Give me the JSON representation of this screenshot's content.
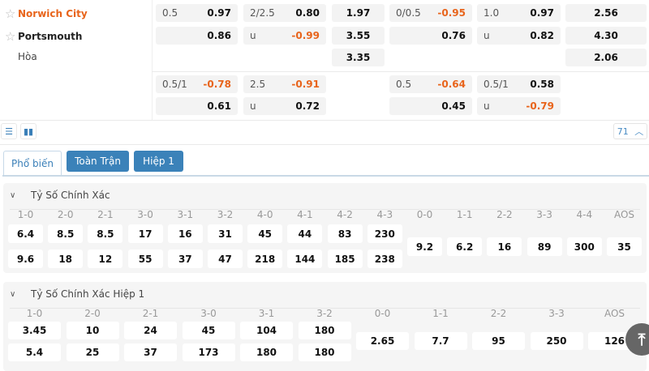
{
  "match": {
    "teams": [
      {
        "name": "Norwich City",
        "color": "#e8641b",
        "starred": false
      },
      {
        "name": "Portsmouth",
        "color": "#111111",
        "starred": false
      },
      {
        "name": "Hòa"
      }
    ]
  },
  "odds_rows": [
    [
      {
        "l": "0.5",
        "v": "0.97"
      },
      {
        "l": "2/2.5",
        "v": "0.80"
      },
      {
        "v": "1.97"
      },
      {
        "l": "0/0.5",
        "v": "-0.95"
      },
      {
        "l": "1.0",
        "v": "0.97"
      },
      {
        "v": "2.56"
      }
    ],
    [
      {
        "l": "",
        "v": "0.86"
      },
      {
        "l": "u",
        "v": "-0.99"
      },
      {
        "v": "3.55"
      },
      {
        "l": "",
        "v": "0.76"
      },
      {
        "l": "u",
        "v": "0.82"
      },
      {
        "v": "4.30"
      }
    ],
    [
      null,
      null,
      {
        "v": "3.35"
      },
      null,
      null,
      {
        "v": "2.06"
      }
    ],
    [
      {
        "l": "0.5/1",
        "v": "-0.78"
      },
      {
        "l": "2.5",
        "v": "-0.91"
      },
      null,
      {
        "l": "0.5",
        "v": "-0.64"
      },
      {
        "l": "0.5/1",
        "v": "0.58"
      },
      null
    ],
    [
      {
        "l": "",
        "v": "0.61"
      },
      {
        "l": "u",
        "v": "0.72"
      },
      null,
      {
        "l": "",
        "v": "0.45"
      },
      {
        "l": "u",
        "v": "-0.79"
      },
      null
    ]
  ],
  "toolbar": {
    "list_icon": "list-icon",
    "chart_icon": "bar-chart-icon",
    "count": "71",
    "collapse_icon": "chevron-up-icon"
  },
  "tabs": [
    {
      "label": "Phổ biến",
      "active": true
    },
    {
      "label": "Toàn Trận",
      "active": false
    },
    {
      "label": "Hiệp 1",
      "active": false
    }
  ],
  "colors": {
    "accent": "#3b82b9",
    "negative": "#e8641b"
  },
  "sections": [
    {
      "title": "Tỷ Số Chính Xác",
      "labels": [
        "1-0",
        "2-0",
        "2-1",
        "3-0",
        "3-1",
        "3-2",
        "4-0",
        "4-1",
        "4-2",
        "4-3",
        "0-0",
        "1-1",
        "2-2",
        "3-3",
        "4-4",
        "AOS"
      ],
      "home": [
        "6.4",
        "8.5",
        "8.5",
        "17",
        "16",
        "31",
        "45",
        "44",
        "83",
        "230"
      ],
      "away": [
        "9.6",
        "18",
        "12",
        "55",
        "37",
        "47",
        "218",
        "144",
        "185",
        "238"
      ],
      "draw": [
        "9.2",
        "6.2",
        "16",
        "89",
        "300",
        "35"
      ]
    },
    {
      "title": "Tỷ Số Chính Xác Hiệp 1",
      "labels": [
        "1-0",
        "2-0",
        "2-1",
        "3-0",
        "3-1",
        "3-2",
        "0-0",
        "1-1",
        "2-2",
        "3-3",
        "AOS"
      ],
      "home": [
        "3.45",
        "10",
        "24",
        "45",
        "104",
        "180"
      ],
      "away": [
        "5.4",
        "25",
        "37",
        "173",
        "180",
        "180"
      ],
      "draw": [
        "2.65",
        "7.7",
        "95",
        "250",
        "126"
      ]
    }
  ],
  "scroll_top_icon": "arrow-to-top-icon"
}
